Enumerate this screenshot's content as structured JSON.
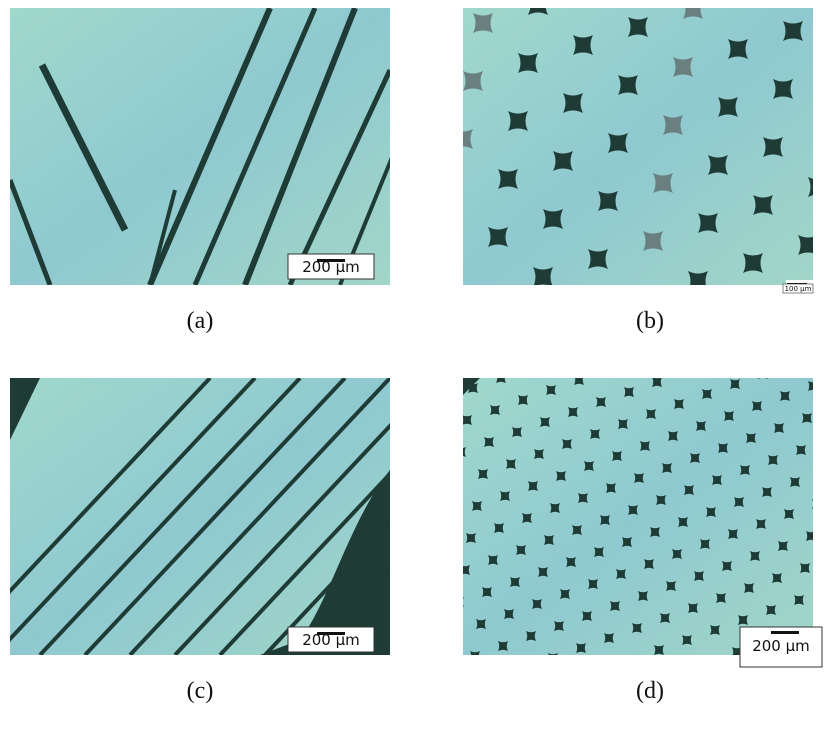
{
  "panels": [
    {
      "label": "(a)",
      "scale_bar": "200 µm"
    },
    {
      "label": "(b)",
      "scale_bar": "100 µm"
    },
    {
      "label": "(c)",
      "scale_bar": "200 µm"
    },
    {
      "label": "(d)",
      "scale_bar": "200 µm"
    }
  ]
}
